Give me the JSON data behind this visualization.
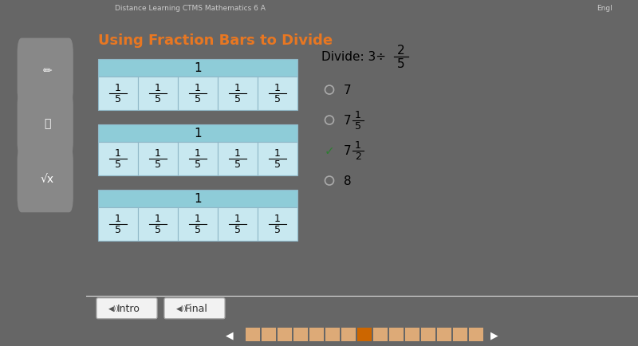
{
  "title": "Using Fraction Bars to Divide",
  "title_color": "#E87722",
  "panel_bg_color": "#ffffff",
  "outer_bg_color": "#666666",
  "left_panel_color": "#555555",
  "top_bar_color": "#444444",
  "bar_header_color": "#8eccd8",
  "bar_cell_color": "#c8e8f0",
  "bar_border_color": "#90b8c8",
  "num_bars": 3,
  "cells_per_bar": 5,
  "bar_label": "1",
  "cell_numerator": "1",
  "cell_denominator": "5",
  "divide_frac_num": "2",
  "divide_frac_den": "5",
  "correct_index": 2,
  "checkmark_color": "#2e7d32",
  "radio_color": "#aaaaaa",
  "bottom_buttons": [
    "Intro",
    "Final"
  ],
  "nav_active_color": "#cc6600",
  "nav_inactive_color": "#ddaa77",
  "nav_active_index": 7,
  "nav_total": 15
}
